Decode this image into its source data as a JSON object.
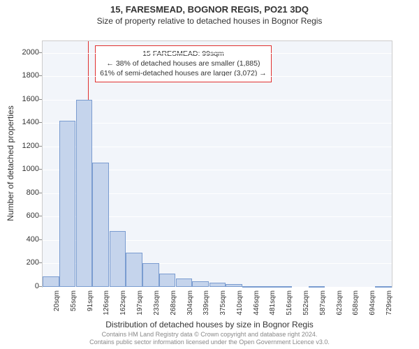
{
  "chart": {
    "type": "histogram",
    "title": "15, FARESMEAD, BOGNOR REGIS, PO21 3DQ",
    "subtitle": "Size of property relative to detached houses in Bognor Regis",
    "xlabel": "Distribution of detached houses by size in Bognor Regis",
    "ylabel": "Number of detached properties",
    "background_color": "#f2f5fa",
    "grid_color": "#ffffff",
    "bar_fill": "#c5d4ec",
    "bar_border": "#7a9cd0",
    "vline_color": "#e03030",
    "vline_x": 99,
    "xlim": [
      2,
      747
    ],
    "ylim": [
      0,
      2100
    ],
    "yticks": [
      0,
      200,
      400,
      600,
      800,
      1000,
      1200,
      1400,
      1600,
      1800,
      2000
    ],
    "xticks": [
      20,
      55,
      91,
      126,
      162,
      197,
      233,
      268,
      304,
      339,
      375,
      410,
      446,
      481,
      516,
      552,
      587,
      623,
      658,
      694,
      729
    ],
    "xtick_suffix": "sqm",
    "bars": [
      {
        "x": 20,
        "v": 90
      },
      {
        "x": 55,
        "v": 1420
      },
      {
        "x": 91,
        "v": 1600
      },
      {
        "x": 126,
        "v": 1060
      },
      {
        "x": 162,
        "v": 480
      },
      {
        "x": 197,
        "v": 290
      },
      {
        "x": 233,
        "v": 205
      },
      {
        "x": 268,
        "v": 115
      },
      {
        "x": 304,
        "v": 70
      },
      {
        "x": 339,
        "v": 45
      },
      {
        "x": 375,
        "v": 35
      },
      {
        "x": 410,
        "v": 25
      },
      {
        "x": 446,
        "v": 5
      },
      {
        "x": 481,
        "v": 5
      },
      {
        "x": 516,
        "v": 5
      },
      {
        "x": 552,
        "v": 0
      },
      {
        "x": 587,
        "v": 5
      },
      {
        "x": 623,
        "v": 0
      },
      {
        "x": 658,
        "v": 0
      },
      {
        "x": 694,
        "v": 0
      },
      {
        "x": 729,
        "v": 5
      }
    ],
    "bar_width_data": 35,
    "annotation": {
      "line1": "15 FARESMEAD: 99sqm",
      "line2": "← 38% of detached houses are smaller (1,885)",
      "line3": "61% of semi-detached houses are larger (3,072) →"
    },
    "footer_line1": "Contains HM Land Registry data © Crown copyright and database right 2024.",
    "footer_line2": "Contains public sector information licensed under the Open Government Licence v3.0."
  }
}
